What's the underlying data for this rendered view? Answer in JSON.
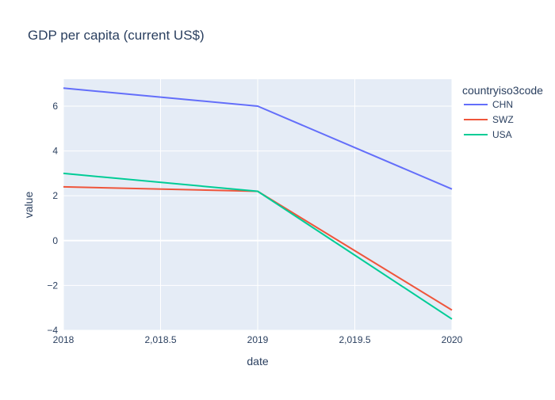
{
  "chart_data": {
    "type": "line",
    "title": "GDP per capita (current US$)",
    "xlabel": "date",
    "ylabel": "value",
    "xlim": [
      2018,
      2020
    ],
    "ylim": [
      -4,
      7.2
    ],
    "xticks": [
      2018,
      2018.5,
      2019,
      2019.5,
      2020
    ],
    "xtick_labels": [
      "2018",
      "2,018.5",
      "2019",
      "2,019.5",
      "2020"
    ],
    "yticks": [
      -4,
      -2,
      0,
      2,
      4,
      6
    ],
    "ytick_labels": [
      "−4",
      "−2",
      "0",
      "2",
      "4",
      "6"
    ],
    "legend_title": "countryiso3code",
    "legend_position": "top-right",
    "grid": true,
    "x": [
      2018,
      2019,
      2020
    ],
    "series": [
      {
        "name": "CHN",
        "color": "#636efa",
        "values": [
          6.8,
          6.0,
          2.3
        ]
      },
      {
        "name": "SWZ",
        "color": "#ef553b",
        "values": [
          2.4,
          2.2,
          -3.1
        ]
      },
      {
        "name": "USA",
        "color": "#00cc96",
        "values": [
          3.0,
          2.2,
          -3.5
        ]
      }
    ]
  }
}
